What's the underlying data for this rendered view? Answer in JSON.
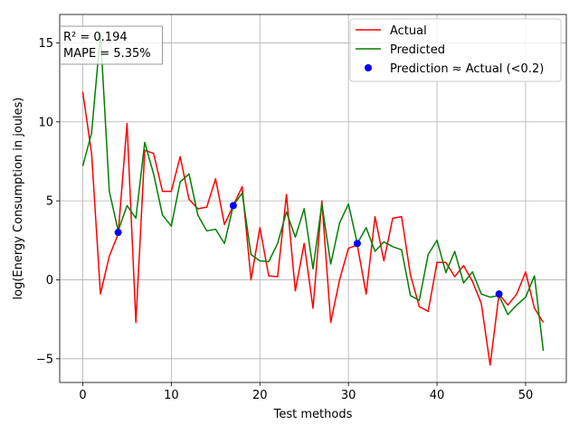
{
  "chart_data": {
    "type": "line",
    "xlabel": "Test methods",
    "ylabel": "log(Energy Consumption in joules)",
    "xlim": [
      -2.6,
      54.6
    ],
    "ylim": [
      -6.5,
      16.8
    ],
    "xticks": [
      0,
      10,
      20,
      30,
      40,
      50
    ],
    "yticks": [
      -5,
      0,
      5,
      10,
      15
    ],
    "grid": true,
    "legend_position": "top-right",
    "stats": [
      "R² = 0.194",
      "MAPE = 5.35%"
    ],
    "stats_position": "top-left",
    "colors": {
      "actual": "#ff0000",
      "predicted": "#008000",
      "match": "#0000ff"
    },
    "series": [
      {
        "name": "Actual",
        "legend_label": "Actual",
        "color": "#ff0000",
        "y": [
          11.9,
          8.0,
          -0.9,
          1.5,
          2.9,
          9.9,
          -2.7,
          8.2,
          8.0,
          5.6,
          5.6,
          7.8,
          5.1,
          4.5,
          4.6,
          6.4,
          3.5,
          4.7,
          5.9,
          0.0,
          3.3,
          0.25,
          0.2,
          5.4,
          -0.7,
          2.3,
          -1.8,
          5.0,
          -2.7,
          0.0,
          2.0,
          2.2,
          -0.9,
          4.0,
          1.2,
          3.9,
          4.0,
          0.3,
          -1.7,
          -2.0,
          1.1,
          1.1,
          0.2,
          0.9,
          -0.1,
          -1.5,
          -5.4,
          -0.9,
          -1.6,
          -0.9,
          0.5,
          -1.8,
          -2.7
        ]
      },
      {
        "name": "Predicted",
        "legend_label": "Predicted",
        "color": "#008000",
        "y": [
          7.2,
          9.3,
          15.6,
          5.6,
          3.1,
          4.7,
          3.9,
          8.7,
          6.7,
          4.1,
          3.4,
          6.2,
          6.7,
          4.1,
          3.1,
          3.2,
          2.3,
          4.7,
          5.5,
          1.6,
          1.2,
          1.15,
          2.3,
          4.3,
          2.7,
          4.5,
          0.7,
          4.8,
          1.0,
          3.6,
          4.8,
          2.3,
          3.3,
          1.8,
          2.4,
          2.1,
          1.9,
          -1.0,
          -1.3,
          1.6,
          2.5,
          0.45,
          1.8,
          -0.2,
          0.5,
          -0.9,
          -1.1,
          -1.0,
          -2.2,
          -1.6,
          -1.1,
          0.25,
          -4.5
        ]
      }
    ],
    "matches": {
      "name": "Prediction ≈ Actual (<0.2)",
      "legend_label": "Prediction ≈ Actual (<0.2)",
      "color": "#0000ff",
      "x": [
        4,
        17,
        31,
        47
      ],
      "y": [
        3.0,
        4.7,
        2.3,
        -0.9
      ]
    }
  }
}
